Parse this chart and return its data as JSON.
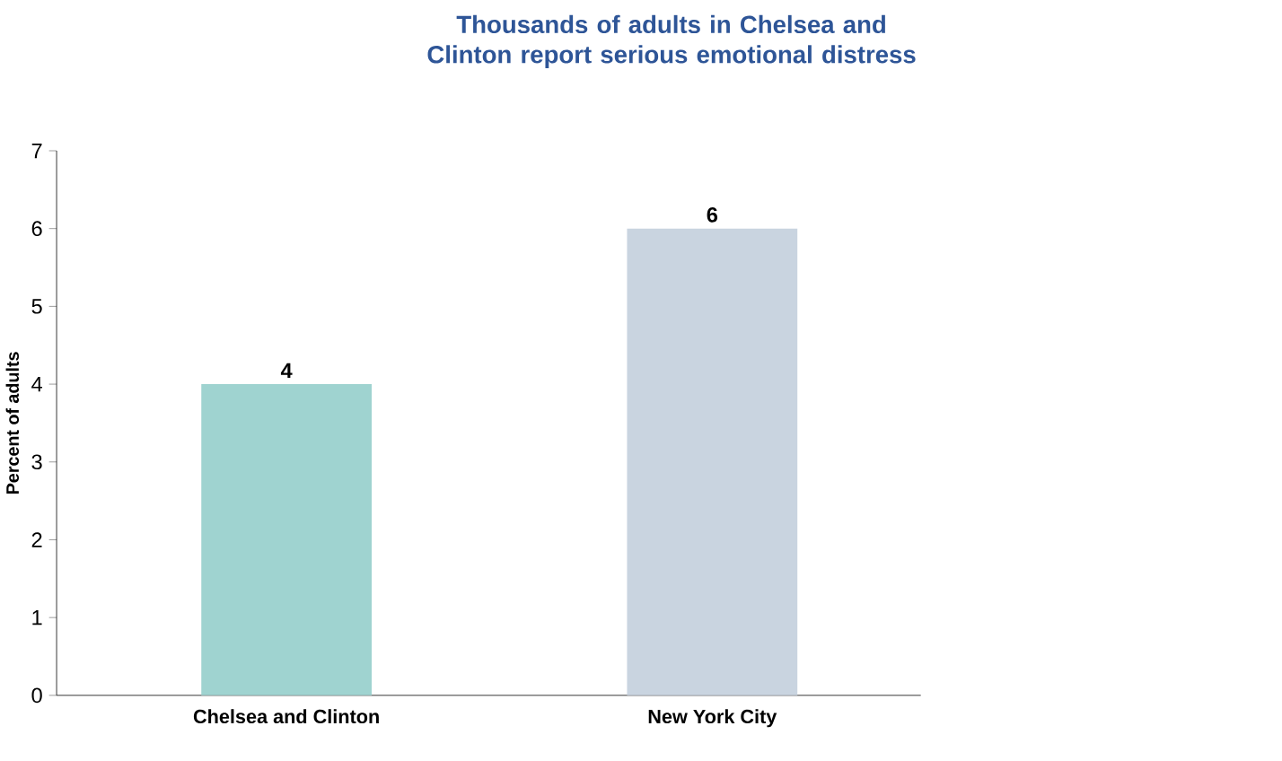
{
  "chart_data": {
    "type": "bar",
    "title": "Thousands of adults in Chelsea and Clinton report serious emotional distress",
    "ylabel": "Percent of adults",
    "categories": [
      "Chelsea and Clinton",
      "New York City"
    ],
    "values": [
      4,
      6
    ],
    "colors": [
      "#9fd3d0",
      "#c9d4e0"
    ],
    "ylim": [
      0,
      7
    ],
    "yticks": [
      0,
      1,
      2,
      3,
      4,
      5,
      6,
      7
    ],
    "data_labels": true
  }
}
